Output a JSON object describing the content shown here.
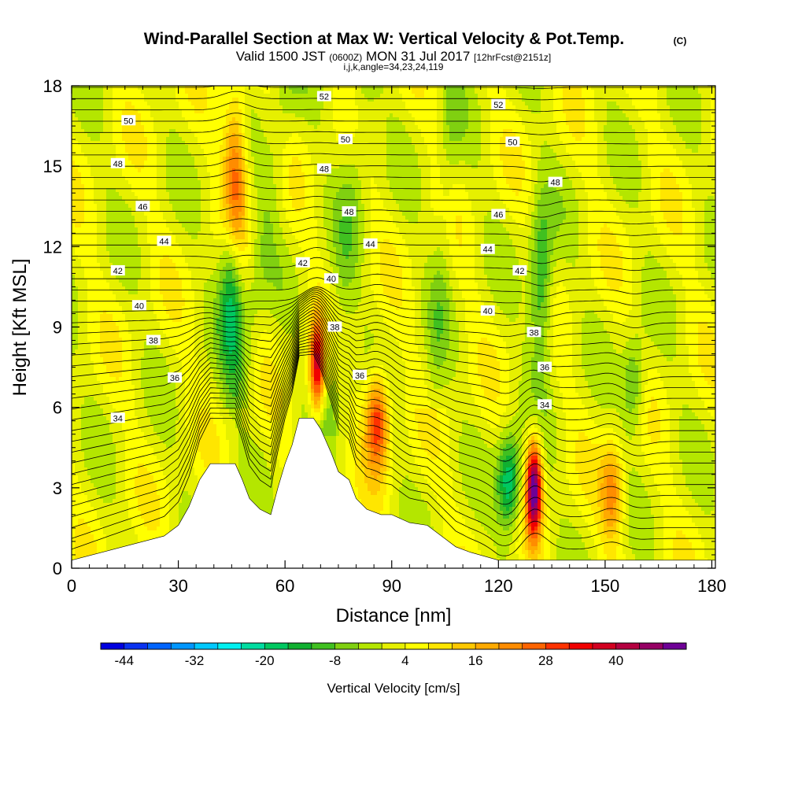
{
  "header": {
    "title": "Wind-Parallel Section at Max W: Vertical Velocity & Pot.Temp.",
    "title_mark": "(C)",
    "subtitle_a": "Valid 1500 JST",
    "subtitle_b": "(0600Z)",
    "subtitle_c": "MON 31 Jul 2017",
    "subtitle_d": "[12hrFcst@2151z]",
    "params": "i,j,k,angle=34,23,24,119"
  },
  "chart_data": {
    "type": "heatmap",
    "xlabel": "Distance [nm]",
    "ylabel": "Height [Kft MSL]",
    "xlim": [
      0,
      181
    ],
    "ylim": [
      0,
      18
    ],
    "x_ticks": [
      "0",
      "30",
      "60",
      "90",
      "120",
      "150",
      "180"
    ],
    "x_tick_values": [
      0,
      30,
      60,
      90,
      120,
      150,
      180
    ],
    "y_ticks": [
      "0",
      "3",
      "6",
      "9",
      "12",
      "15",
      "18"
    ],
    "y_tick_values": [
      0,
      3,
      6,
      9,
      12,
      15,
      18
    ],
    "grid": false,
    "colorbar": {
      "title": "Vertical Velocity [cm/s]",
      "tick_labels": [
        "-44",
        "-32",
        "-20",
        "-8",
        "4",
        "16",
        "28",
        "40"
      ],
      "tick_values": [
        -44,
        -32,
        -20,
        -8,
        4,
        16,
        28,
        40
      ],
      "min": -48,
      "max": 52,
      "colors": [
        "#0000e0",
        "#0a32f0",
        "#0064ff",
        "#0096ff",
        "#00c8ff",
        "#00f0f0",
        "#00dca0",
        "#00c860",
        "#10b030",
        "#40c020",
        "#80d010",
        "#b4e600",
        "#e6f000",
        "#ffff00",
        "#ffe600",
        "#ffc800",
        "#ffaa00",
        "#ff8c00",
        "#ff6400",
        "#ff3200",
        "#f00000",
        "#d20020",
        "#b40040",
        "#960064",
        "#6e0096"
      ]
    },
    "terrain": {
      "x": [
        0,
        26,
        30,
        33,
        36,
        39,
        42,
        46,
        48,
        50,
        53,
        56,
        58,
        60,
        62,
        64,
        66,
        68,
        70,
        73,
        75,
        78,
        80,
        83,
        87,
        90,
        95,
        100,
        105,
        108,
        112,
        120,
        125,
        130,
        181
      ],
      "height": [
        0.3,
        1.2,
        1.6,
        2.3,
        3.3,
        3.9,
        3.9,
        3.9,
        3.3,
        2.6,
        2.2,
        2.0,
        3.0,
        3.9,
        4.6,
        5.6,
        5.6,
        5.6,
        5.2,
        4.3,
        3.6,
        3.3,
        2.6,
        2.2,
        2.0,
        2.0,
        1.7,
        1.6,
        1.1,
        0.8,
        0.6,
        0.3,
        0.3,
        0.3,
        0.3
      ]
    },
    "updraft_cores": [
      {
        "x": 46,
        "height": 14.5,
        "w": 26
      },
      {
        "x": 69,
        "height": 7.5,
        "w": 36
      },
      {
        "x": 86,
        "height": 5.5,
        "w": 30
      },
      {
        "x": 130,
        "height": 3.0,
        "w": 48
      },
      {
        "x": 152,
        "height": 2.8,
        "w": 20
      }
    ],
    "downdraft_cores": [
      {
        "x": 45,
        "height": 10.5,
        "w": -22
      },
      {
        "x": 123,
        "height": 3.2,
        "w": -24
      },
      {
        "x": 132,
        "height": 10.5,
        "w": -18
      },
      {
        "x": 158,
        "height": 6.8,
        "w": -14
      }
    ],
    "theta_contours": {
      "series": "Pot.Temp. (C)",
      "labeled_values": [
        {
          "x": 13,
          "height": 15.1,
          "value": "48"
        },
        {
          "x": 16,
          "height": 16.7,
          "value": "50"
        },
        {
          "x": 20,
          "height": 13.5,
          "value": "46"
        },
        {
          "x": 26,
          "height": 12.2,
          "value": "44"
        },
        {
          "x": 13,
          "height": 11.1,
          "value": "42"
        },
        {
          "x": 19,
          "height": 9.8,
          "value": "40"
        },
        {
          "x": 23,
          "height": 8.5,
          "value": "38"
        },
        {
          "x": 29,
          "height": 7.1,
          "value": "36"
        },
        {
          "x": 13,
          "height": 5.6,
          "value": "34"
        },
        {
          "x": 71,
          "height": 17.6,
          "value": "52"
        },
        {
          "x": 77,
          "height": 16.0,
          "value": "50"
        },
        {
          "x": 71,
          "height": 14.9,
          "value": "48"
        },
        {
          "x": 78,
          "height": 13.3,
          "value": "48"
        },
        {
          "x": 84,
          "height": 12.1,
          "value": "44"
        },
        {
          "x": 65,
          "height": 11.4,
          "value": "42"
        },
        {
          "x": 73,
          "height": 10.8,
          "value": "40"
        },
        {
          "x": 74,
          "height": 9.0,
          "value": "38"
        },
        {
          "x": 81,
          "height": 7.2,
          "value": "36"
        },
        {
          "x": 120,
          "height": 17.3,
          "value": "52"
        },
        {
          "x": 124,
          "height": 15.9,
          "value": "50"
        },
        {
          "x": 136,
          "height": 14.4,
          "value": "48"
        },
        {
          "x": 120,
          "height": 13.2,
          "value": "46"
        },
        {
          "x": 117,
          "height": 11.9,
          "value": "44"
        },
        {
          "x": 126,
          "height": 11.1,
          "value": "42"
        },
        {
          "x": 117,
          "height": 9.6,
          "value": "40"
        },
        {
          "x": 130,
          "height": 8.8,
          "value": "38"
        },
        {
          "x": 133,
          "height": 7.5,
          "value": "36"
        },
        {
          "x": 133,
          "height": 6.1,
          "value": "34"
        }
      ]
    }
  }
}
